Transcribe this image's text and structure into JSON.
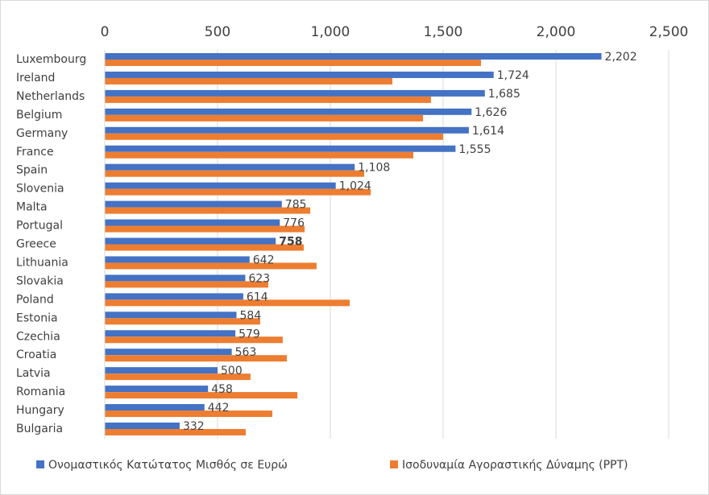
{
  "chart_data": {
    "type": "bar",
    "orientation": "horizontal",
    "categories": [
      "Luxembourg",
      "Ireland",
      "Netherlands",
      "Belgium",
      "Germany",
      "France",
      "Spain",
      "Slovenia",
      "Malta",
      "Portugal",
      "Greece",
      "Lithuania",
      "Slovakia",
      "Poland",
      "Estonia",
      "Czechia",
      "Croatia",
      "Latvia",
      "Romania",
      "Hungary",
      "Bulgaria"
    ],
    "series": [
      {
        "name": "Ονομαστικός Κατώτατος Μισθός σε Ευρώ",
        "color": "#4472c4",
        "values": [
          2202,
          1724,
          1685,
          1626,
          1614,
          1555,
          1108,
          1024,
          785,
          776,
          758,
          642,
          623,
          614,
          584,
          579,
          563,
          500,
          458,
          442,
          332
        ],
        "value_labels": [
          "2,202",
          "1,724",
          "1,685",
          "1,626",
          "1,614",
          "1,555",
          "1,108",
          "1,024",
          "785",
          "776",
          "758",
          "642",
          "623",
          "614",
          "584",
          "579",
          "563",
          "500",
          "458",
          "442",
          "332"
        ]
      },
      {
        "name": "Ισοδυναμία Αγοραστικής Δύναμης (PPT)",
        "color": "#ed7d31",
        "values": [
          1668,
          1275,
          1446,
          1411,
          1500,
          1368,
          1150,
          1179,
          911,
          886,
          882,
          939,
          725,
          1086,
          689,
          789,
          807,
          646,
          854,
          743,
          625
        ]
      }
    ],
    "xlim": [
      0,
      2500
    ],
    "xticks": [
      0,
      500,
      {
        "value": 1000,
        "label": "1,000"
      },
      {
        "value": 1500,
        "label": "1,500"
      },
      {
        "value": 2000,
        "label": "2,000"
      },
      {
        "value": 2500,
        "label": "2,500"
      }
    ],
    "grid": true,
    "legend": "bottom"
  }
}
